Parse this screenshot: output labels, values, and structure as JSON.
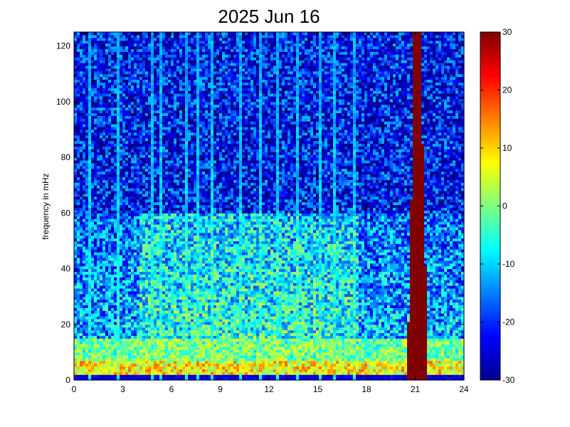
{
  "chart_data": {
    "type": "heatmap",
    "title": "2025 Jun 16",
    "xlabel": "",
    "ylabel": "frequency in mHz",
    "xlim": [
      0,
      24
    ],
    "ylim": [
      0,
      125
    ],
    "xticks": [
      0,
      3,
      6,
      9,
      12,
      15,
      18,
      21,
      24
    ],
    "yticks": [
      0,
      20,
      40,
      60,
      80,
      100,
      120
    ],
    "colorbar": {
      "colormap": "jet",
      "range": [
        -30,
        30
      ],
      "ticks": [
        -30,
        -20,
        -10,
        0,
        10,
        20,
        30
      ]
    },
    "grid": false,
    "features": [
      {
        "description": "broadband high-power burst",
        "time_range_h": [
          20.5,
          21.8
        ],
        "value": 30
      },
      {
        "description": "elevated low-frequency band",
        "freq_range_mhz": [
          0,
          15
        ],
        "typical_value": 5
      },
      {
        "description": "mid-frequency enhancement",
        "time_range_h": [
          4,
          17
        ],
        "freq_range_mhz": [
          15,
          60
        ],
        "typical_value": -5
      },
      {
        "description": "background high frequencies",
        "freq_range_mhz": [
          60,
          125
        ],
        "typical_value": -22
      }
    ]
  }
}
